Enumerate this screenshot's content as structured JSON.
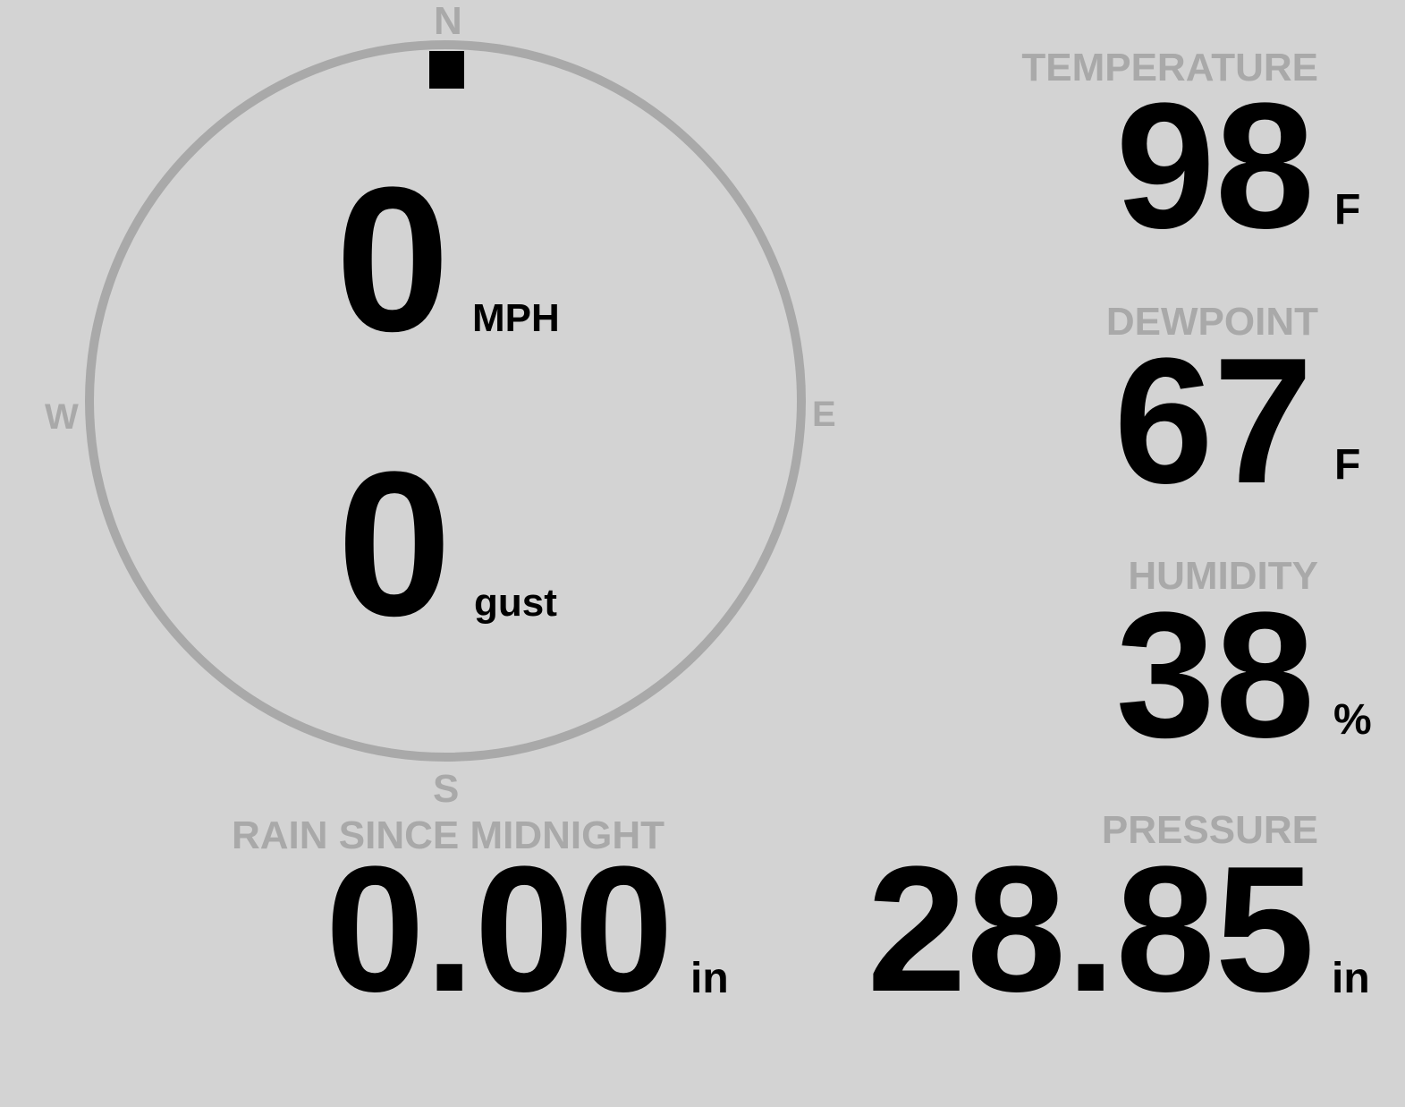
{
  "wind": {
    "compass": {
      "north": "N",
      "south": "S",
      "east": "E",
      "west": "W"
    },
    "direction_degrees": 0,
    "speed": "0",
    "speed_unit": "MPH",
    "gust": "0",
    "gust_unit": "gust"
  },
  "temperature": {
    "label": "TEMPERATURE",
    "value": "98",
    "unit": "F"
  },
  "dewpoint": {
    "label": "DEWPOINT",
    "value": "67",
    "unit": "F"
  },
  "humidity": {
    "label": "HUMIDITY",
    "value": "38",
    "unit": "%"
  },
  "pressure": {
    "label": "PRESSURE",
    "value": "28.85",
    "unit": "in"
  },
  "rain": {
    "label": "RAIN SINCE MIDNIGHT",
    "value": "0.00",
    "unit": "in"
  },
  "colors": {
    "background": "#d3d3d3",
    "muted": "#a9a9a9",
    "text": "#000000"
  }
}
